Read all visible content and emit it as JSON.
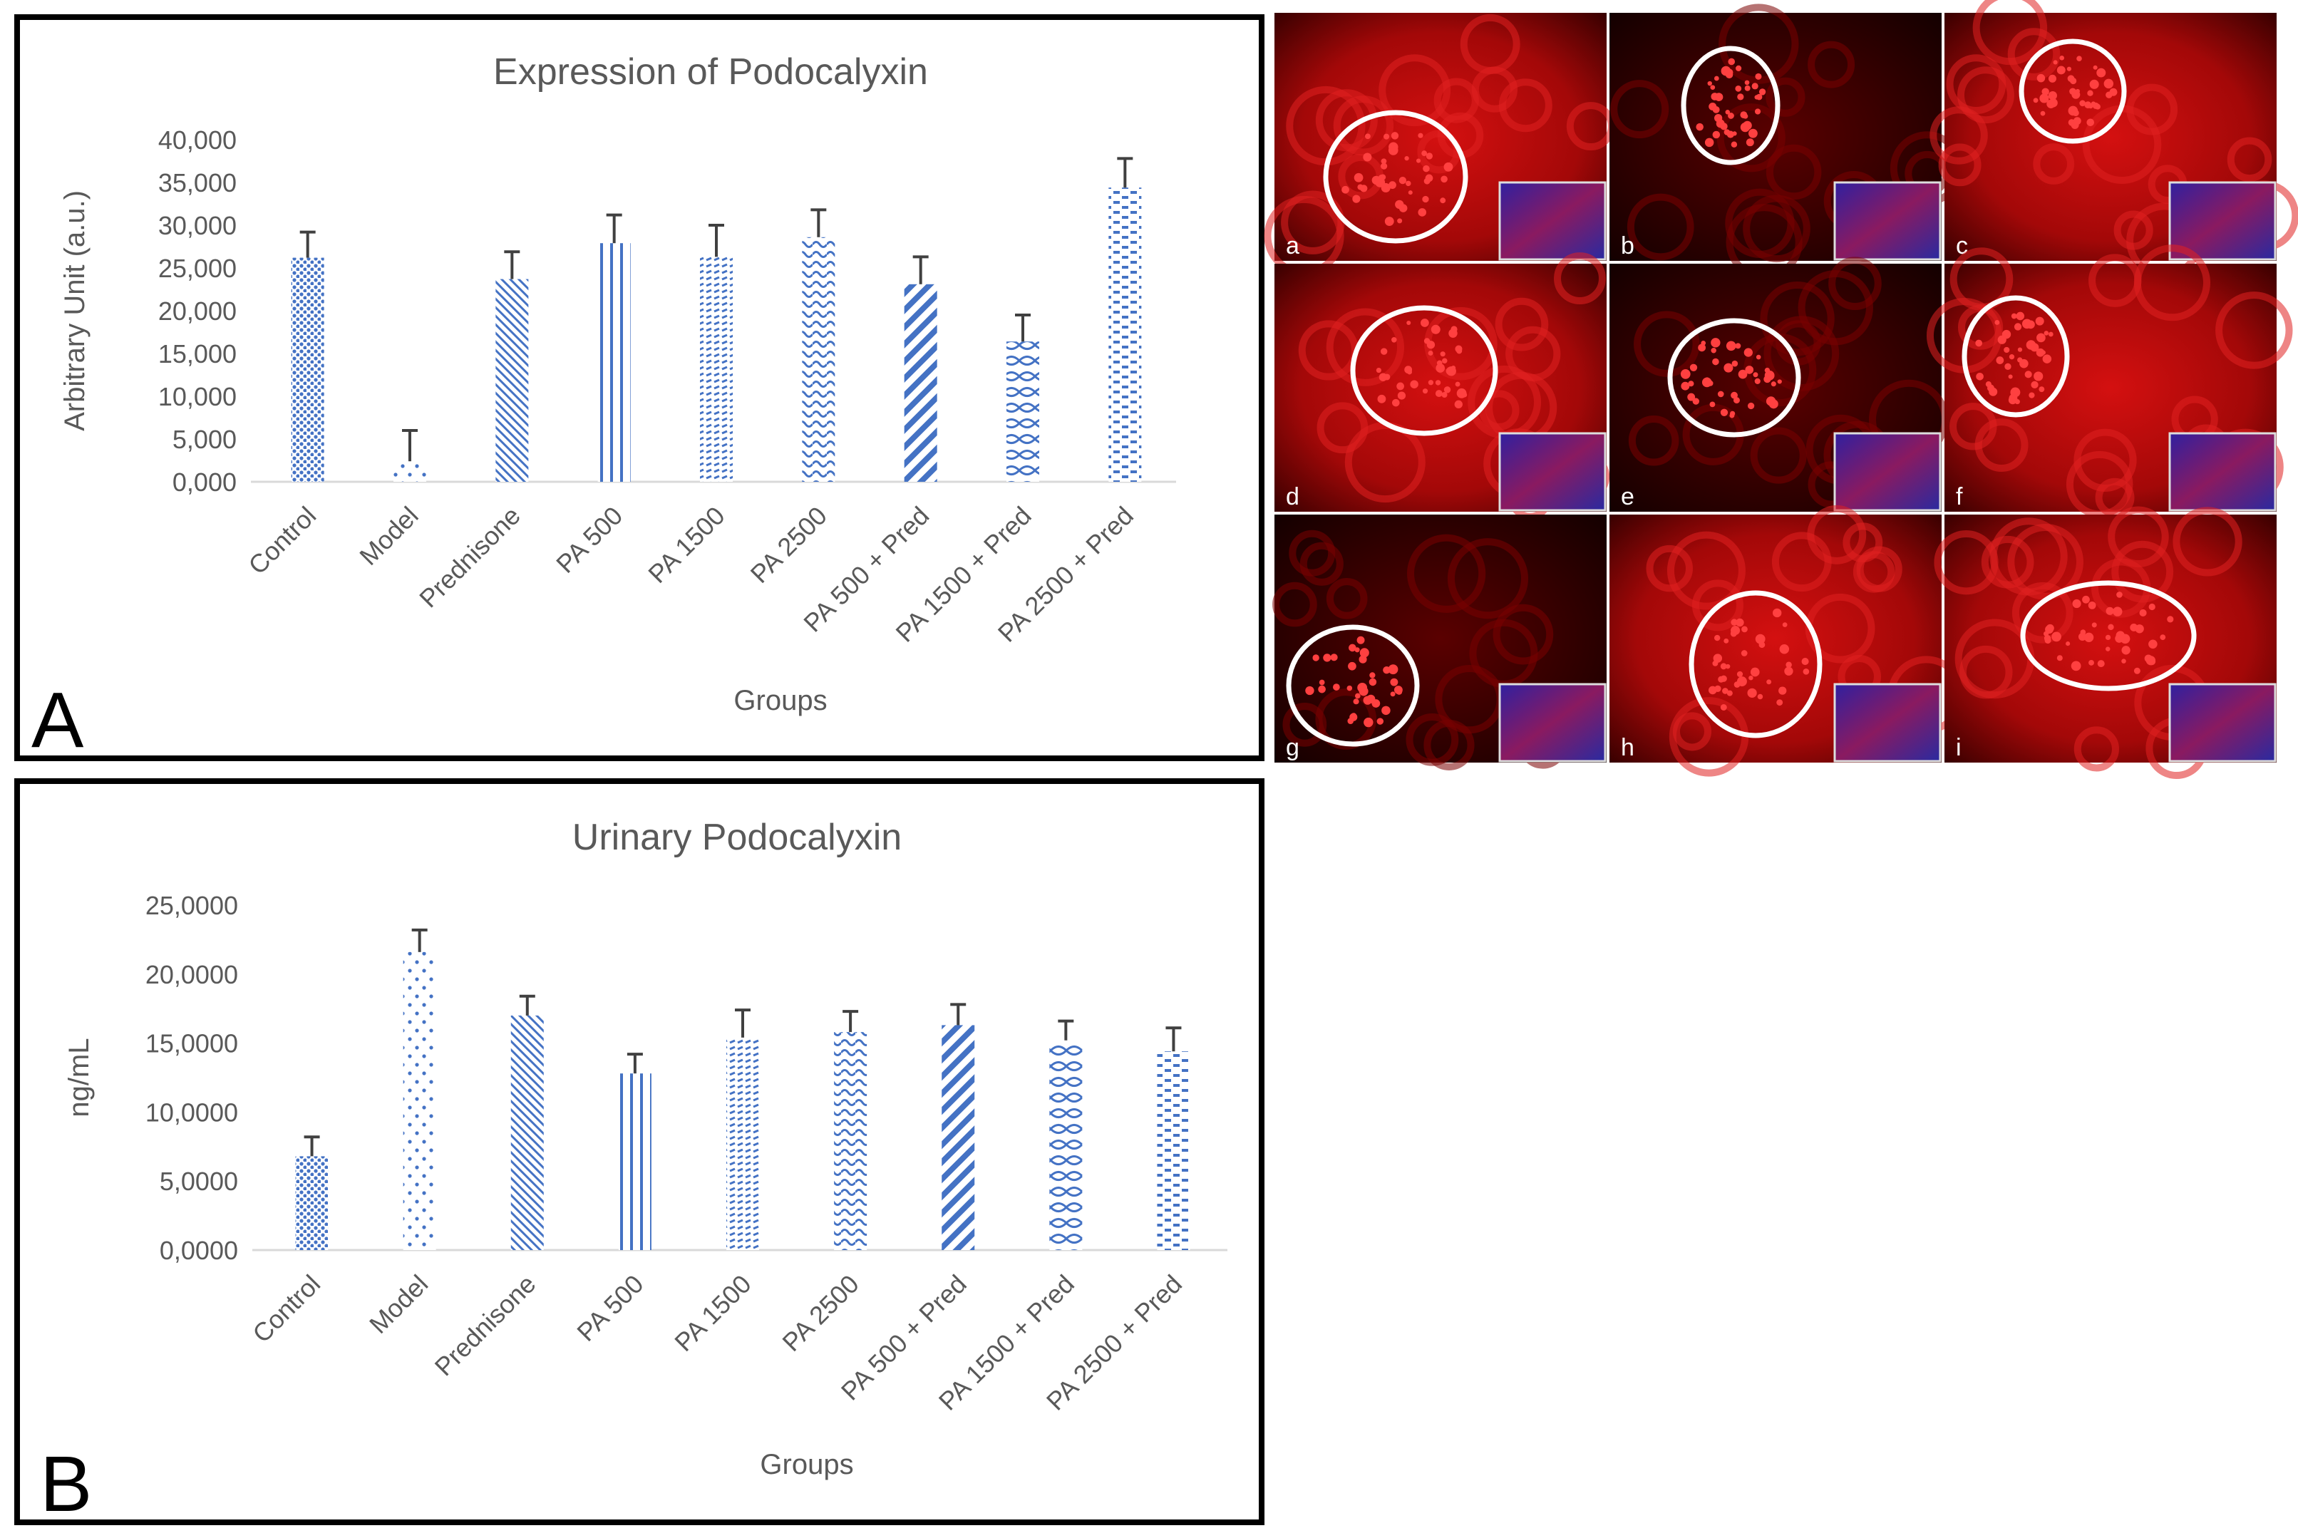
{
  "palette": {
    "bar_blue": "#4472c4",
    "axis_gray": "#595959",
    "gridline_gray": "#d9d9d9",
    "error_black": "#404040",
    "frame_black": "#000000",
    "micro_red": "#c00000",
    "micro_dark": "#1a0000",
    "micro_blue": "#2a2aa0"
  },
  "icons": {
    "glomerulus_marker": "white-ellipse-outline",
    "dapi_inset": "blue-red-inset-square"
  },
  "chart_data": [
    {
      "panel_label": "A",
      "type": "bar",
      "title": "Expression of Podocalyxin",
      "xlabel": "Groups",
      "ylabel": "Arbitrary Unit (a.u.)",
      "ylim": [
        0,
        40000
      ],
      "yticks": [
        "40,000",
        "35,000",
        "30,000",
        "25,000",
        "20,000",
        "15,000",
        "10,000",
        "5,000",
        "0,000"
      ],
      "grid": false,
      "categories": [
        "Control",
        "Model",
        "Prednisone",
        "PA 500",
        "PA 1500",
        "PA 2500",
        "PA 500 + Pred",
        "PA 1500 + Pred",
        "PA 2500 + Pred"
      ],
      "values": [
        26200,
        2400,
        23700,
        27900,
        26300,
        28600,
        23100,
        16400,
        34400
      ],
      "errors": [
        3000,
        3600,
        3200,
        3300,
        3700,
        3200,
        3200,
        3100,
        3400
      ],
      "patterns": [
        "dots-dense",
        "dots-sparse",
        "diagonal-back",
        "vertical",
        "dash-rows",
        "wave",
        "diagonal-wide",
        "lattice",
        "dash-horizontal"
      ]
    },
    {
      "panel_label": "B",
      "type": "bar",
      "title": "Urinary Podocalyxin",
      "xlabel": "Groups",
      "ylabel": "ng/mL",
      "ylim": [
        0,
        25
      ],
      "yticks": [
        "25,0000",
        "20,0000",
        "15,0000",
        "10,0000",
        "5,0000",
        "0,0000"
      ],
      "grid": false,
      "categories": [
        "Control",
        "Model",
        "Prednisone",
        "PA 500",
        "PA 1500",
        "PA 2500",
        "PA 500 + Pred",
        "PA 1500 + Pred",
        "PA 2500 + Pred"
      ],
      "values": [
        6.8,
        21.6,
        17.0,
        12.8,
        15.4,
        15.8,
        16.3,
        15.2,
        14.4
      ],
      "errors": [
        1.4,
        1.6,
        1.4,
        1.4,
        2.0,
        1.5,
        1.5,
        1.4,
        1.7
      ],
      "patterns": [
        "dots-dense",
        "dots-sparse",
        "diagonal-back",
        "vertical",
        "dash-rows",
        "wave",
        "diagonal-wide",
        "lattice",
        "dash-horizontal"
      ]
    }
  ],
  "micrographs": {
    "panel_labels": [
      "a",
      "b",
      "c",
      "d",
      "e",
      "f",
      "g",
      "h",
      "i"
    ]
  }
}
